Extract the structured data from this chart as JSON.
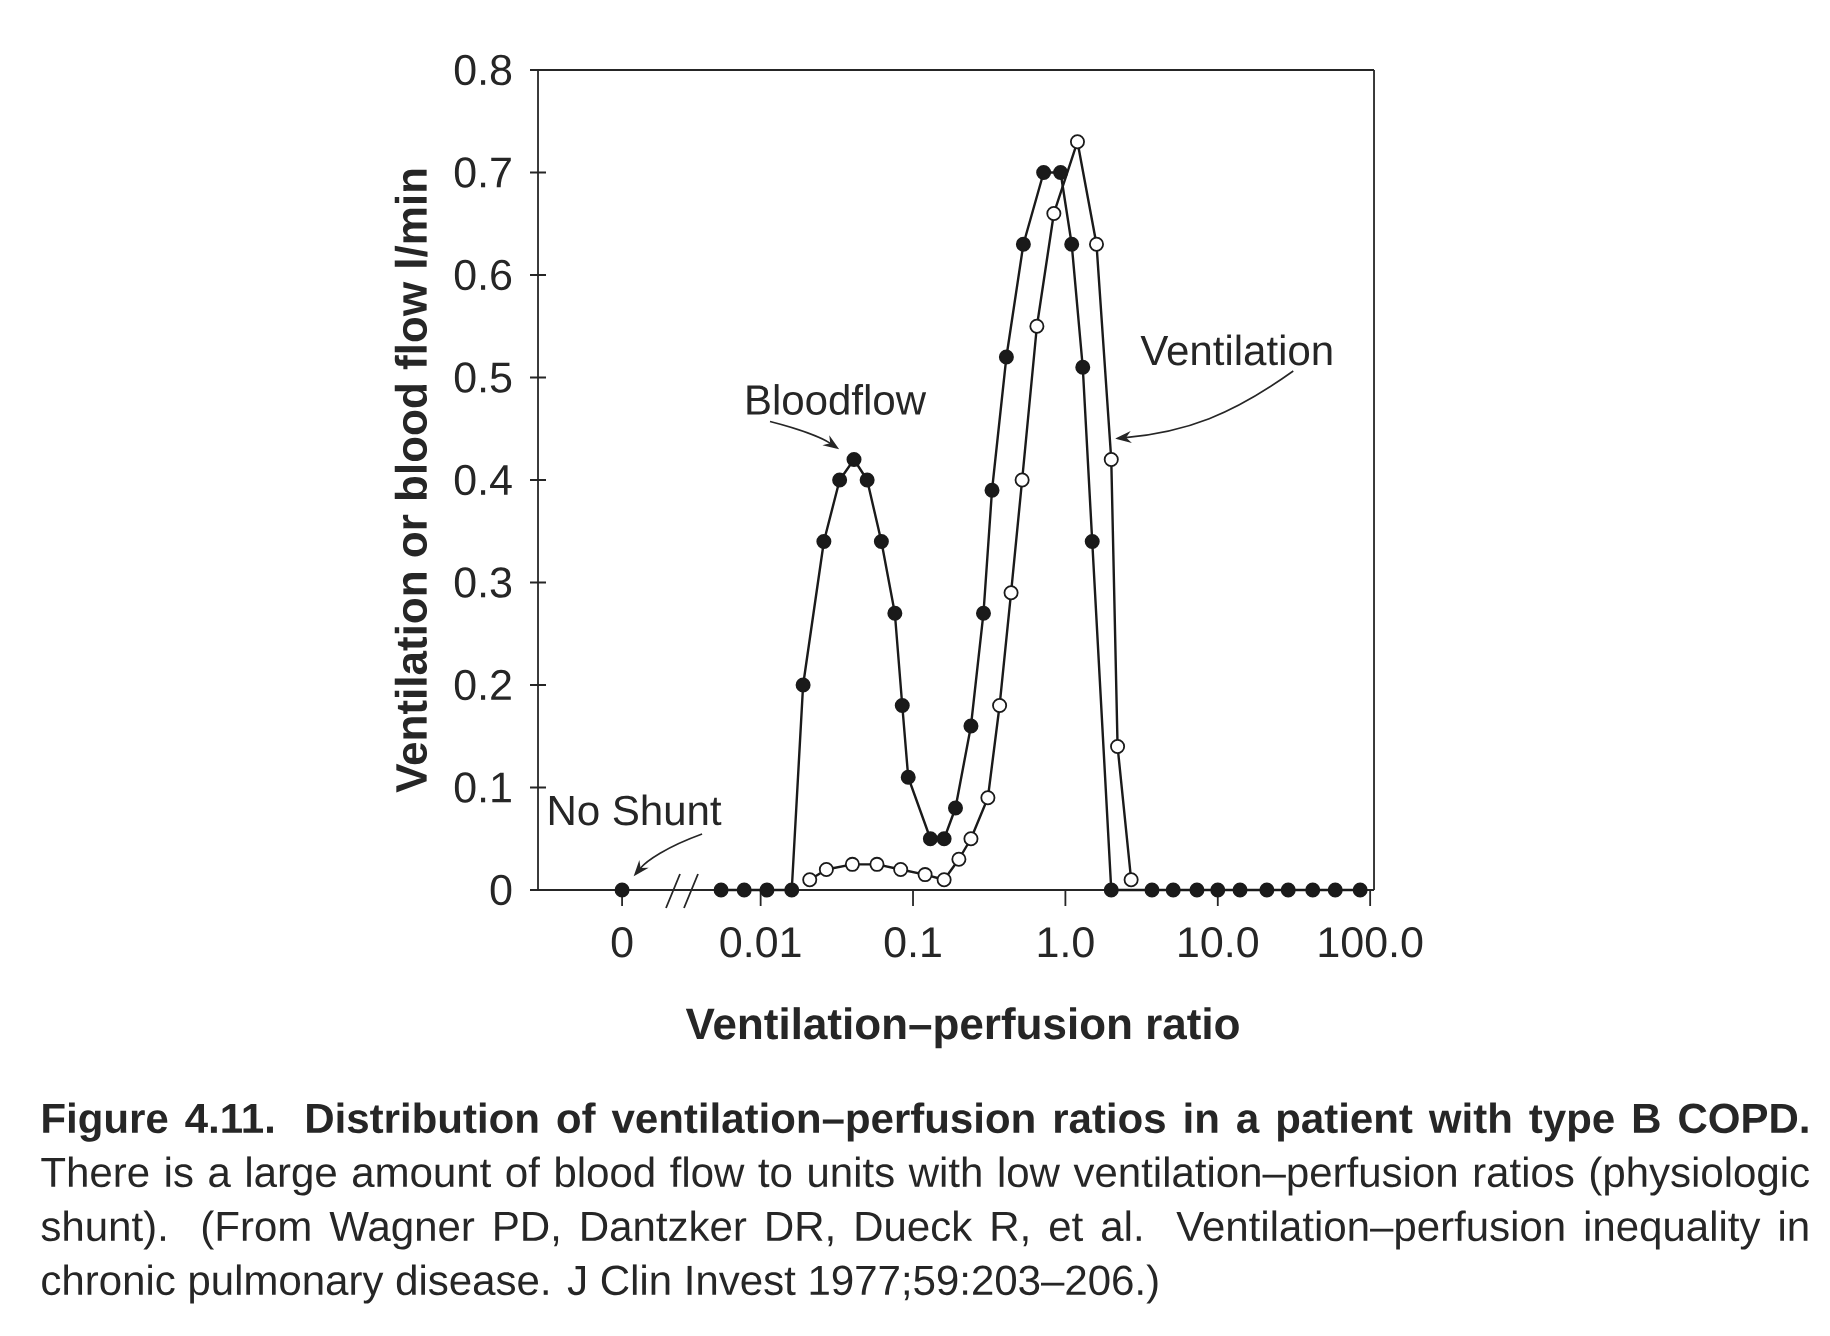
{
  "chart_data": [
    {
      "type": "scatter",
      "ylabel": "Ventilation or blood flow l/min",
      "categories": [
        "0"
      ],
      "series": [
        {
          "color": "#1a1a1a",
          "values": [
            0
          ]
        }
      ],
      "ylim": [
        0,
        0.8
      ],
      "yticks": [
        0,
        0.1,
        0.2,
        0.3,
        0.4,
        0.5,
        0.6,
        0.7,
        0.8
      ],
      "marker": "circle",
      "annotations": [
        {
          "text": "No Shunt",
          "x": "0",
          "y": 0
        }
      ]
    },
    {
      "type": "line",
      "xlabel": "Ventilation–perfusion ratio",
      "log": "x",
      "xlim": [
        0.004,
        106
      ],
      "xticks": [
        0.01,
        0.1,
        {
          "value": 1,
          "label": "1.0"
        },
        {
          "value": 10,
          "label": "10.0"
        },
        {
          "value": 100,
          "label": "100.0"
        }
      ],
      "ylim": [
        0,
        0.8
      ],
      "tick_labels": "x",
      "marker": "circle",
      "series": [
        {
          "color": "#1a1a1a",
          "x": [
            0.0055,
            0.0078,
            0.011,
            0.016,
            0.019,
            0.026,
            0.033,
            0.041,
            0.05,
            0.062,
            0.076,
            0.085,
            0.093,
            0.13,
            0.16,
            0.19,
            0.24,
            0.29,
            0.33,
            0.41,
            0.53,
            0.72,
            0.93,
            1.1,
            1.3,
            1.5,
            2.0,
            3.7,
            5.1,
            7.3,
            10,
            14,
            21,
            29,
            42,
            59,
            86
          ],
          "values": [
            0,
            0,
            0,
            0,
            0.2,
            0.34,
            0.4,
            0.42,
            0.4,
            0.34,
            0.27,
            0.18,
            0.11,
            0.05,
            0.05,
            0.08,
            0.16,
            0.27,
            0.39,
            0.52,
            0.63,
            0.7,
            0.7,
            0.63,
            0.51,
            0.34,
            0,
            0,
            0,
            0,
            0,
            0,
            0,
            0,
            0,
            0,
            0
          ]
        },
        {
          "color": "#1a1a1a",
          "x": [
            0.021,
            0.027,
            0.04,
            0.058,
            0.083,
            0.12,
            0.16,
            0.2,
            0.24,
            0.31,
            0.37,
            0.44,
            0.52,
            0.65,
            0.84,
            1.2,
            1.6,
            2.0,
            2.2,
            2.7
          ],
          "values": [
            0.01,
            0.02,
            0.025,
            0.025,
            0.02,
            0.015,
            0.01,
            0.03,
            0.05,
            0.09,
            0.18,
            0.29,
            0.4,
            0.55,
            0.66,
            0.73,
            0.63,
            0.42,
            0.14,
            0.01
          ]
        }
      ],
      "annotations": [
        {
          "text": "Bloodflow",
          "x": 0.041,
          "y": 0.42
        },
        {
          "text": "Ventilation",
          "x": 2.0,
          "y": 0.44
        },
        "**Figure 4.11.  Distribution of ventilation–perfusion ratios in a patient with type B COPD.** There is a large amount of blood flow to units with low ventilation–perfusion ratios (physiologic shunt). (From Wagner PD, Dantzker DR, Dueck R, et al. Ventilation–perfusion inequality in chronic pulmonary disease. J Clin Invest 1977;59:203–206.)"
      ]
    }
  ]
}
